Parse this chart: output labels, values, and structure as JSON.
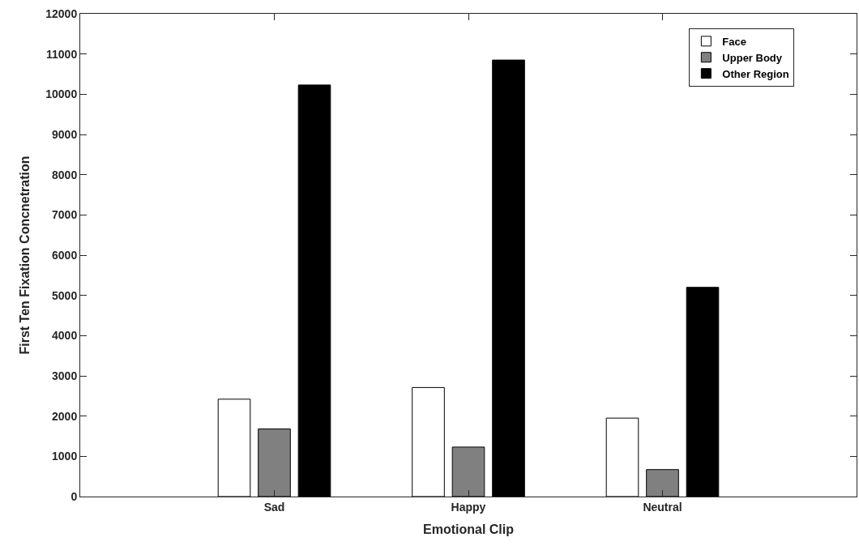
{
  "chart_data": {
    "type": "bar",
    "xlabel": "Emotional Clip",
    "ylabel": "First Ten Fixation Concnetration",
    "categories": [
      "Sad",
      "Happy",
      "Neutral"
    ],
    "series": [
      {
        "name": "Face",
        "color": "#ffffff",
        "values": [
          2420,
          2710,
          1950
        ]
      },
      {
        "name": "Upper Body",
        "color": "#808080",
        "values": [
          1680,
          1230,
          670
        ]
      },
      {
        "name": "Other Region",
        "color": "#000000",
        "values": [
          10230,
          10850,
          5200
        ]
      }
    ],
    "ylim": [
      0,
      12000
    ],
    "yticks": [
      0,
      1000,
      2000,
      3000,
      4000,
      5000,
      6000,
      7000,
      8000,
      9000,
      10000,
      11000,
      12000
    ],
    "legend": "top right"
  }
}
